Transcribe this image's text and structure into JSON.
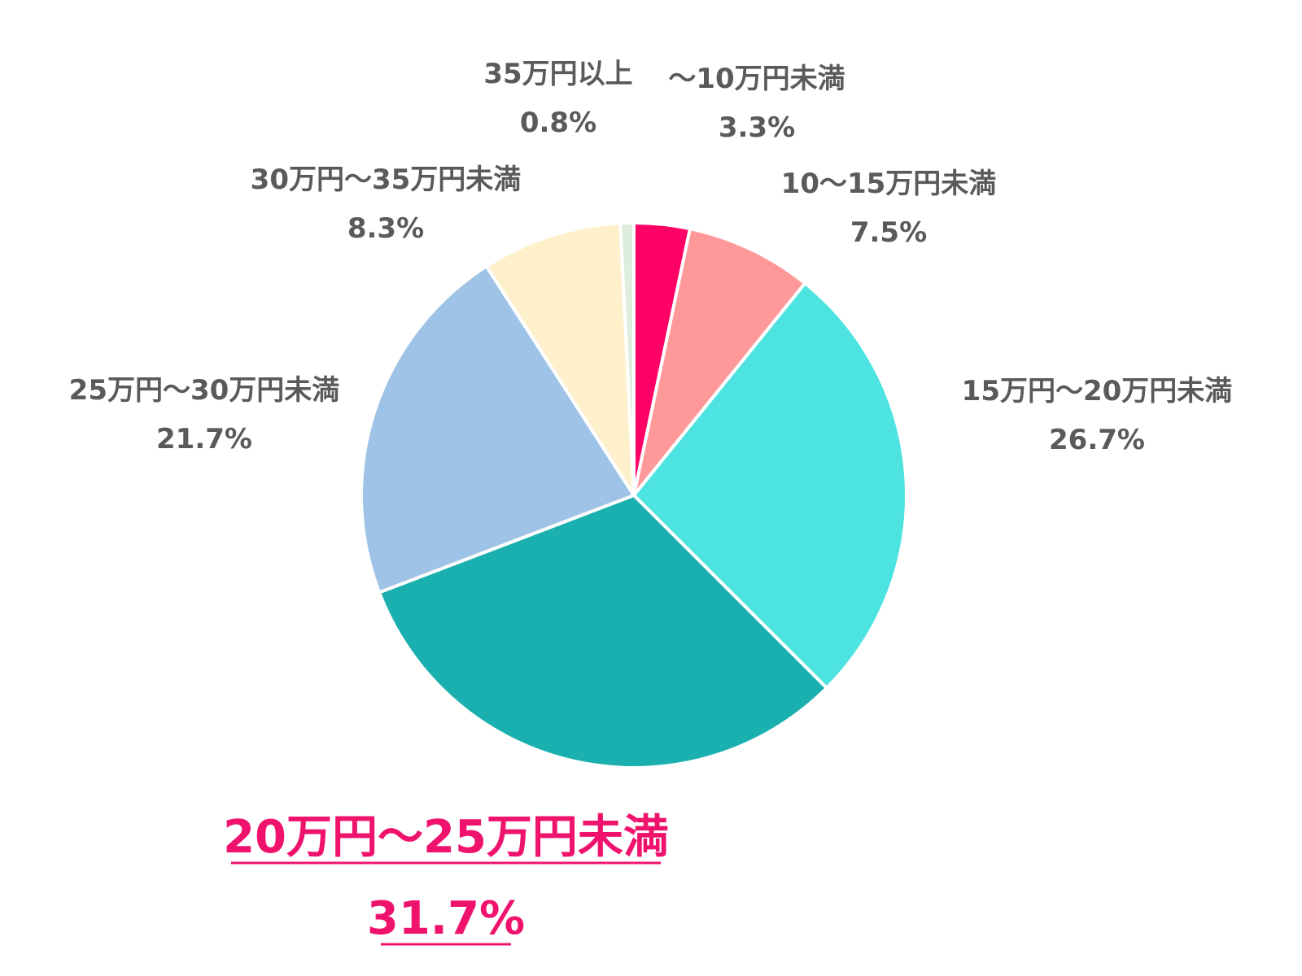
{
  "chart_data": {
    "type": "pie",
    "start_angle_deg": 0,
    "direction": "clockwise",
    "slices": [
      {
        "label": "～10万円未満",
        "value": 3.3,
        "value_label": "3.3%",
        "color": "#ff0066"
      },
      {
        "label": "10～15万円未満",
        "value": 7.5,
        "value_label": "7.5%",
        "color": "#ff9999"
      },
      {
        "label": "15万円～20万円未満",
        "value": 26.7,
        "value_label": "26.7%",
        "color": "#4de3e0"
      },
      {
        "label": "20万円～25万円未満",
        "value": 31.7,
        "value_label": "31.7%",
        "color": "#1bb0b0",
        "highlight": true
      },
      {
        "label": "25万円～30万円未満",
        "value": 21.7,
        "value_label": "21.7%",
        "color": "#9fc3e6"
      },
      {
        "label": "30万円～35万円未満",
        "value": 8.3,
        "value_label": "8.3%",
        "color": "#fff0cc"
      },
      {
        "label": "35万円以上",
        "value": 0.8,
        "value_label": "0.8%",
        "color": "#ddeedd"
      }
    ]
  },
  "colors": {
    "label_text": "#5a5a5a",
    "highlight_text": "#f0136e",
    "slice_border": "#ffffff"
  }
}
